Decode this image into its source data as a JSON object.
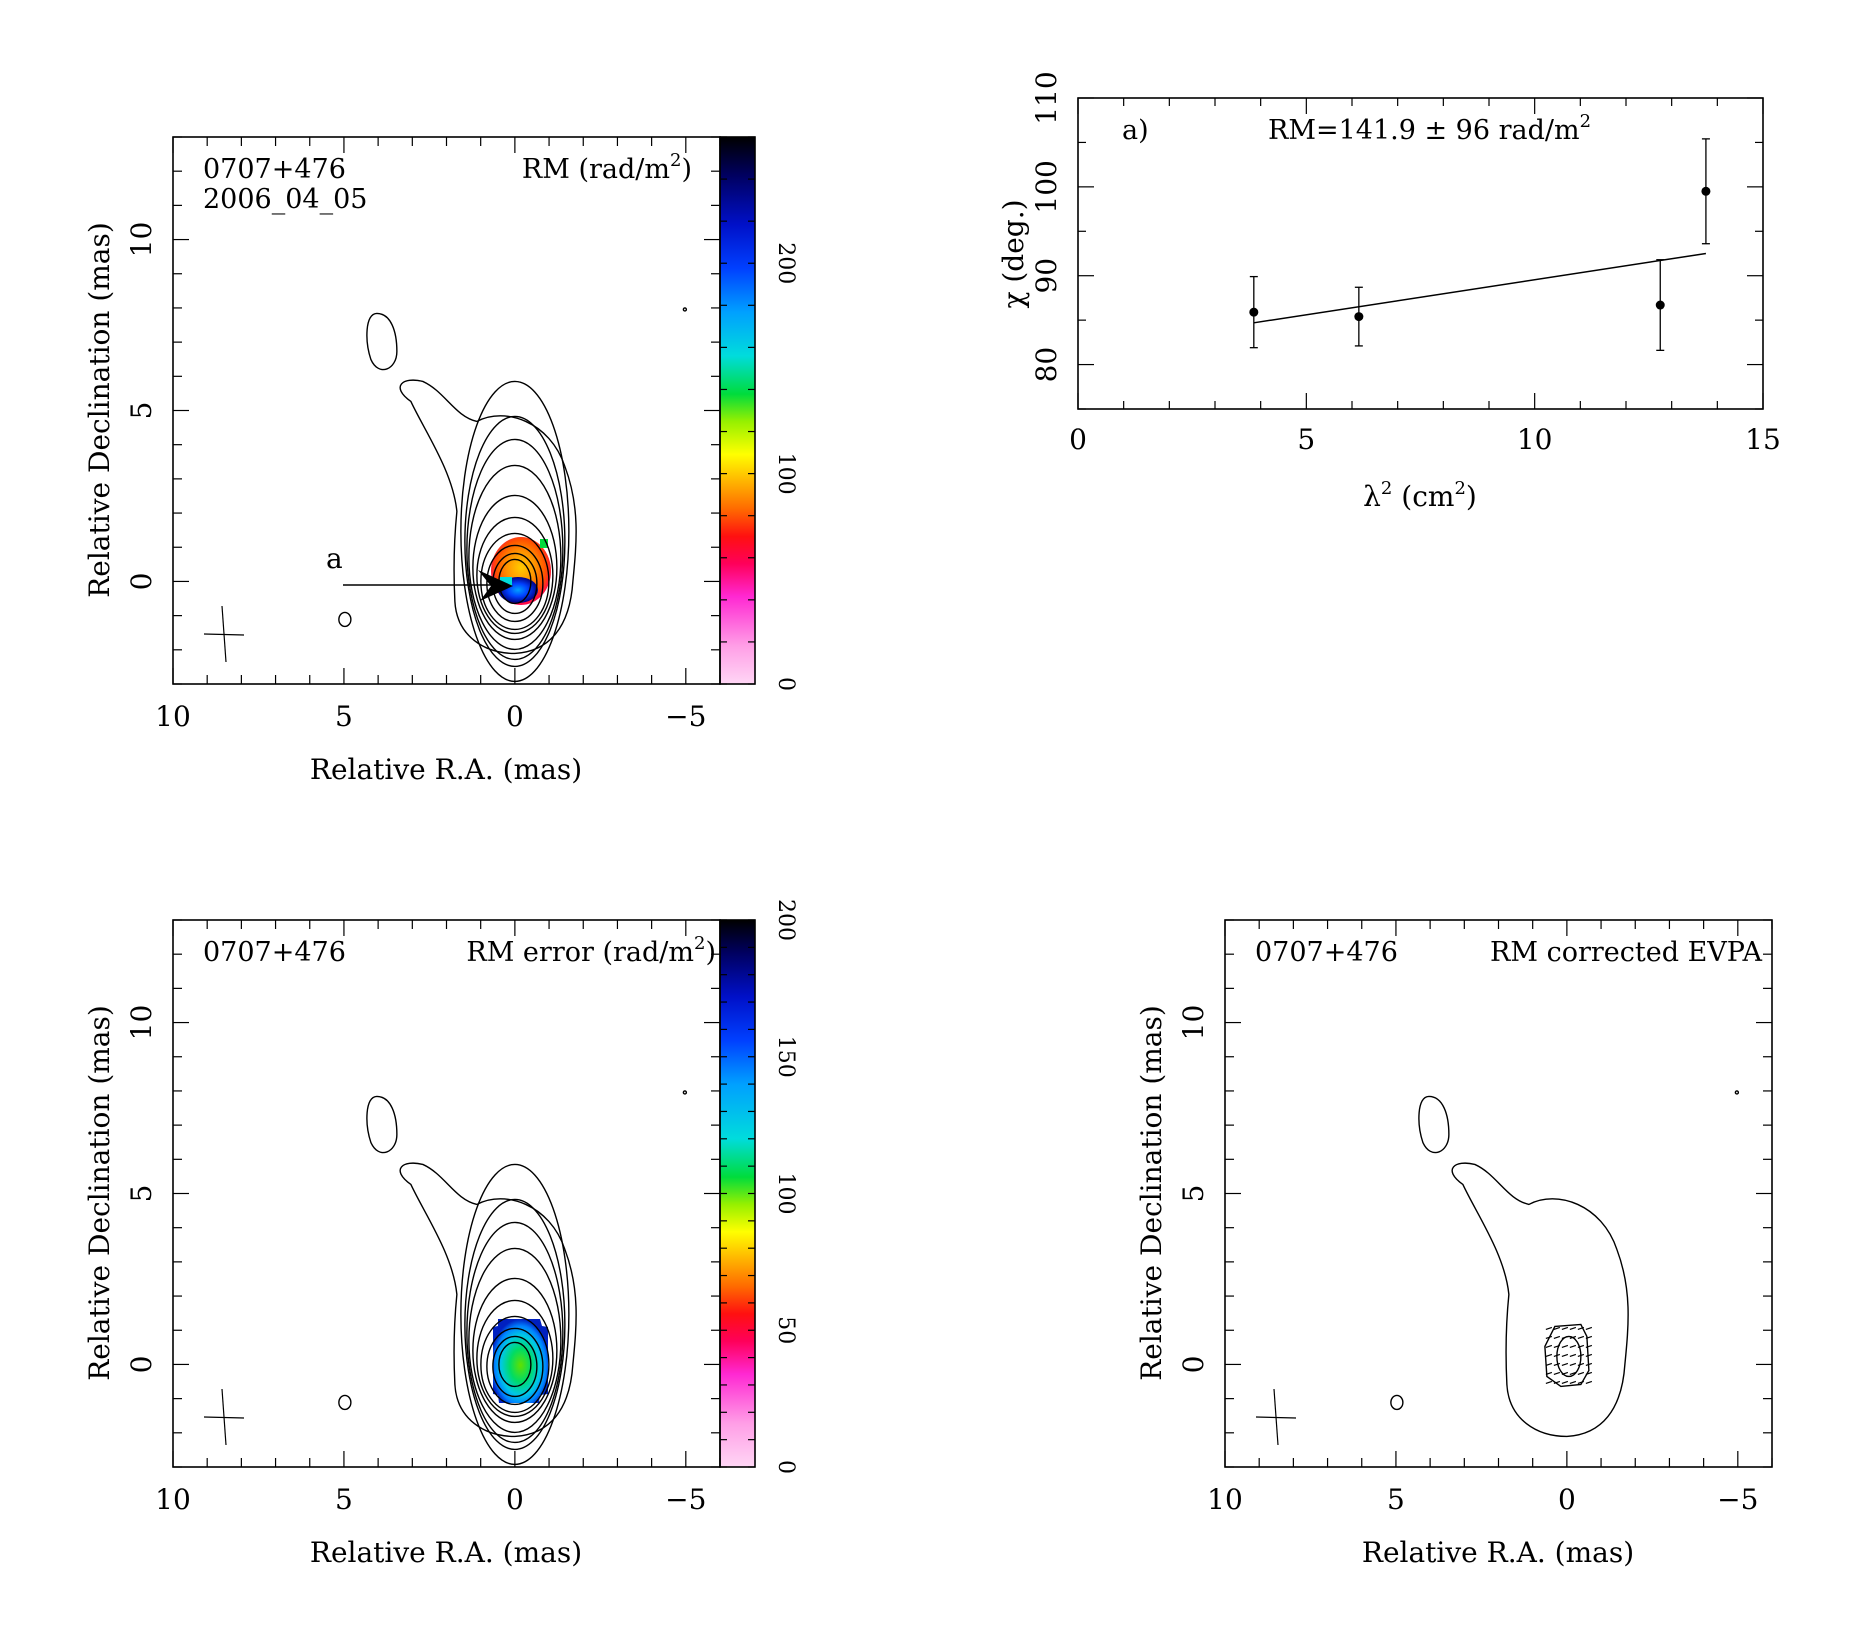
{
  "chart_data": [
    {
      "type": "heatmap",
      "panel": "rm-map",
      "source_label": "0707+476",
      "epoch_label": "2006_04_05",
      "map_label": "RM (rad/m",
      "map_label_sup": "2",
      "map_label_end": ")",
      "feature_label": "a",
      "xlabel": "Relative R.A. (mas)",
      "ylabel": "Relative Declination (mas)",
      "xlim": [
        10,
        -6
      ],
      "ylim": [
        -3,
        13
      ],
      "xticks": [
        "10",
        "5",
        "0",
        "−5"
      ],
      "xtick_values": [
        10,
        5,
        0,
        -5
      ],
      "yticks": [
        "0",
        "5",
        "10"
      ],
      "ytick_values": [
        0,
        5,
        10
      ],
      "colorbar_range": [
        0,
        260
      ],
      "colorbar_ticks": [
        "0",
        "100",
        "200"
      ],
      "colorbar_tick_values": [
        0,
        100,
        200
      ]
    },
    {
      "type": "scatter",
      "panel": "rm-fit",
      "panel_label": "a)",
      "annotation": "RM=141.9 ± 96 rad/m",
      "annotation_sup": "2",
      "xlabel_main": "λ",
      "xlabel_sup": "2",
      "xlabel_rest": " (cm",
      "xlabel_sup2": "2",
      "xlabel_end": ")",
      "ylabel": "χ (deg.)",
      "xlim": [
        0,
        15
      ],
      "ylim": [
        75,
        110
      ],
      "xticks": [
        "0",
        "5",
        "10",
        "15"
      ],
      "xtick_values": [
        0,
        5,
        10,
        15
      ],
      "yticks": [
        "80",
        "90",
        "100",
        "110"
      ],
      "ytick_values": [
        80,
        90,
        100,
        110
      ],
      "points": [
        {
          "x": 3.85,
          "y": 85.9,
          "err": 4.0
        },
        {
          "x": 6.15,
          "y": 85.4,
          "err": 3.3
        },
        {
          "x": 12.75,
          "y": 86.7,
          "err": 5.1
        },
        {
          "x": 13.75,
          "y": 99.5,
          "err": 5.9
        }
      ],
      "fit_line": {
        "x": [
          3.85,
          13.75
        ],
        "y": [
          84.7,
          92.5
        ]
      }
    },
    {
      "type": "heatmap",
      "panel": "rm-error-map",
      "source_label": "0707+476",
      "map_label": "RM error (rad/m",
      "map_label_sup": "2",
      "map_label_end": ")",
      "xlabel": "Relative R.A. (mas)",
      "ylabel": "Relative Declination (mas)",
      "xlim": [
        10,
        -6
      ],
      "ylim": [
        -3,
        13
      ],
      "xticks": [
        "10",
        "5",
        "0",
        "−5"
      ],
      "xtick_values": [
        10,
        5,
        0,
        -5
      ],
      "yticks": [
        "0",
        "5",
        "10"
      ],
      "ytick_values": [
        0,
        5,
        10
      ],
      "colorbar_range": [
        0,
        200
      ],
      "colorbar_ticks": [
        "0",
        "50",
        "100",
        "150",
        "200"
      ],
      "colorbar_tick_values": [
        0,
        50,
        100,
        150,
        200
      ]
    },
    {
      "type": "heatmap",
      "panel": "evpa-map",
      "source_label": "0707+476",
      "map_label": "RM corrected EVPA",
      "xlabel": "Relative R.A. (mas)",
      "ylabel": "Relative Declination (mas)",
      "xlim": [
        10,
        -6
      ],
      "ylim": [
        -3,
        13
      ],
      "xticks": [
        "10",
        "5",
        "0",
        "−5"
      ],
      "xtick_values": [
        10,
        5,
        0,
        -5
      ],
      "yticks": [
        "0",
        "5",
        "10"
      ],
      "ytick_values": [
        0,
        5,
        10
      ]
    }
  ]
}
